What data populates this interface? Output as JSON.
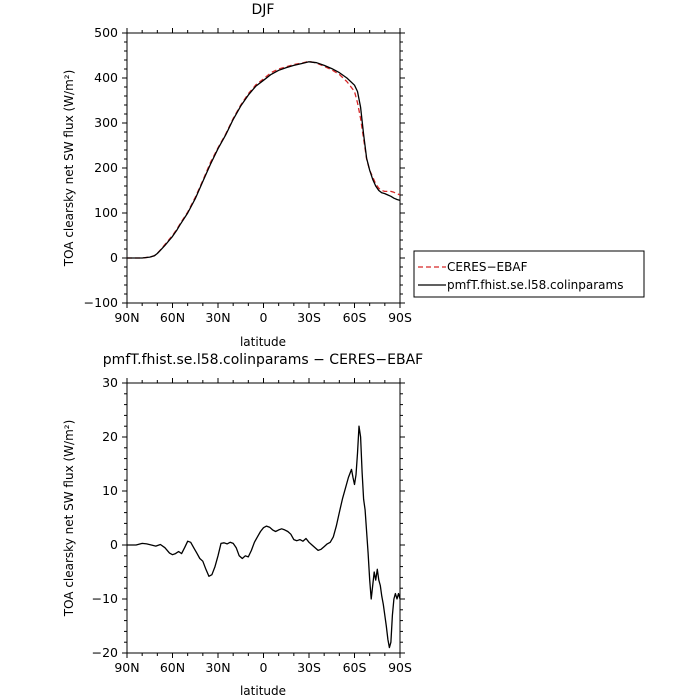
{
  "chart_data": [
    {
      "type": "line",
      "title": "DJF",
      "xlabel": "latitude",
      "ylabel": "TOA clearsky net SW flux (W/m²)",
      "xlim": [
        90,
        -90
      ],
      "ylim": [
        -100,
        500
      ],
      "xticks": [
        90,
        60,
        30,
        0,
        -30,
        -60,
        -90
      ],
      "xtick_labels": [
        "90N",
        "60N",
        "30N",
        "0",
        "30S",
        "60S",
        "90S"
      ],
      "yticks": [
        -100,
        0,
        100,
        200,
        300,
        400,
        500
      ],
      "ytick_labels": [
        "−100",
        "0",
        "100",
        "200",
        "300",
        "400",
        "500"
      ],
      "grid": false,
      "legend_position": "right",
      "series": [
        {
          "name": "CERES−EBAF",
          "color": "#d62728",
          "dash": "dashed",
          "x": [
            90,
            80,
            75,
            72,
            70,
            68,
            65,
            62,
            60,
            57,
            55,
            50,
            45,
            40,
            35,
            30,
            25,
            20,
            15,
            10,
            5,
            0,
            -5,
            -10,
            -15,
            -20,
            -25,
            -30,
            -35,
            -40,
            -45,
            -50,
            -55,
            -60,
            -62,
            -64,
            -66,
            -68,
            -70,
            -72,
            -74,
            -76,
            -78,
            -80,
            -82,
            -84,
            -86,
            -88,
            -90
          ],
          "y": [
            0,
            0,
            2,
            5,
            10,
            18,
            30,
            42,
            50,
            65,
            76,
            102,
            135,
            172,
            212,
            245,
            275,
            310,
            340,
            365,
            385,
            398,
            412,
            420,
            425,
            430,
            433,
            437,
            433,
            426,
            418,
            408,
            392,
            370,
            345,
            310,
            265,
            220,
            195,
            180,
            165,
            155,
            150,
            148,
            148,
            148,
            146,
            143,
            140
          ]
        },
        {
          "name": "pmfT.fhist.se.l58.colinparams",
          "color": "#000000",
          "dash": "solid",
          "x": [
            90,
            80,
            75,
            72,
            70,
            68,
            65,
            62,
            60,
            57,
            55,
            50,
            45,
            40,
            35,
            30,
            25,
            20,
            15,
            10,
            5,
            0,
            -5,
            -10,
            -15,
            -20,
            -25,
            -30,
            -35,
            -40,
            -45,
            -50,
            -55,
            -60,
            -62,
            -64,
            -66,
            -68,
            -70,
            -72,
            -74,
            -76,
            -78,
            -80,
            -82,
            -84,
            -86,
            -88,
            -90
          ],
          "y": [
            0,
            0,
            2,
            5,
            10,
            17,
            28,
            40,
            48,
            63,
            74,
            100,
            132,
            170,
            208,
            243,
            273,
            308,
            338,
            362,
            382,
            395,
            408,
            417,
            423,
            428,
            432,
            436,
            434,
            428,
            421,
            412,
            400,
            384,
            370,
            335,
            275,
            222,
            195,
            175,
            160,
            150,
            145,
            143,
            140,
            137,
            133,
            130,
            128
          ]
        }
      ]
    },
    {
      "type": "line",
      "title": "pmfT.fhist.se.l58.colinparams − CERES−EBAF",
      "xlabel": "latitude",
      "ylabel": "TOA clearsky net SW flux (W/m²)",
      "xlim": [
        90,
        -90
      ],
      "ylim": [
        -20,
        30
      ],
      "xticks": [
        90,
        60,
        30,
        0,
        -30,
        -60,
        -90
      ],
      "xtick_labels": [
        "90N",
        "60N",
        "30N",
        "0",
        "30S",
        "60S",
        "90S"
      ],
      "yticks": [
        -20,
        -10,
        0,
        10,
        20,
        30
      ],
      "ytick_labels": [
        "−20",
        "−10",
        "0",
        "10",
        "20",
        "30"
      ],
      "grid": false,
      "series": [
        {
          "name": "",
          "color": "#000000",
          "dash": "solid",
          "x": [
            90,
            84,
            80,
            77,
            74,
            71,
            68,
            65,
            62,
            60,
            58,
            56,
            54,
            52,
            50,
            48,
            46,
            44,
            42,
            40,
            38,
            36,
            34,
            32,
            30,
            28,
            26,
            24,
            22,
            20,
            18,
            16,
            14,
            12,
            10,
            8,
            6,
            4,
            2,
            0,
            -2,
            -4,
            -6,
            -8,
            -10,
            -12,
            -14,
            -16,
            -18,
            -20,
            -22,
            -24,
            -26,
            -28,
            -30,
            -32,
            -34,
            -36,
            -38,
            -40,
            -42,
            -44,
            -46,
            -48,
            -50,
            -52,
            -54,
            -56,
            -58,
            -59,
            -60,
            -61,
            -62,
            -63,
            -64,
            -65,
            -66,
            -67,
            -68,
            -69,
            -70,
            -71,
            -72,
            -73,
            -74,
            -75,
            -76,
            -77,
            -78,
            -79,
            -80,
            -81,
            -82,
            -83,
            -84,
            -85,
            -86,
            -87,
            -88,
            -89,
            -90
          ],
          "y": [
            0,
            0,
            0.3,
            0.2,
            0,
            -0.2,
            0.1,
            -0.5,
            -1.5,
            -1.8,
            -1.6,
            -1.2,
            -1.6,
            -0.5,
            0.7,
            0.5,
            -0.5,
            -1.5,
            -2.5,
            -3.0,
            -4.5,
            -5.8,
            -5.5,
            -4.0,
            -2.0,
            0.3,
            0.4,
            0.2,
            0.5,
            0.3,
            -0.5,
            -2.0,
            -2.5,
            -2.0,
            -2.2,
            -1.0,
            0.5,
            1.5,
            2.5,
            3.2,
            3.5,
            3.3,
            2.8,
            2.5,
            2.8,
            3.0,
            2.8,
            2.5,
            2.0,
            1.0,
            0.8,
            1.0,
            0.7,
            1.2,
            0.5,
            0,
            -0.5,
            -1.0,
            -0.8,
            -0.3,
            0.2,
            0.5,
            1.5,
            3.5,
            6.0,
            8.5,
            10.5,
            12.5,
            14.0,
            12.5,
            11.2,
            13.0,
            17.0,
            22.0,
            20.0,
            13.5,
            8.5,
            6.5,
            2.5,
            -1.5,
            -6.5,
            -10.0,
            -7.5,
            -5.0,
            -6.5,
            -4.5,
            -6.5,
            -7.5,
            -9.5,
            -11.0,
            -13.0,
            -15.0,
            -17.5,
            -19.0,
            -18.0,
            -13.0,
            -10.0,
            -9.0,
            -10.0,
            -9.0,
            -10.0
          ]
        }
      ]
    }
  ]
}
